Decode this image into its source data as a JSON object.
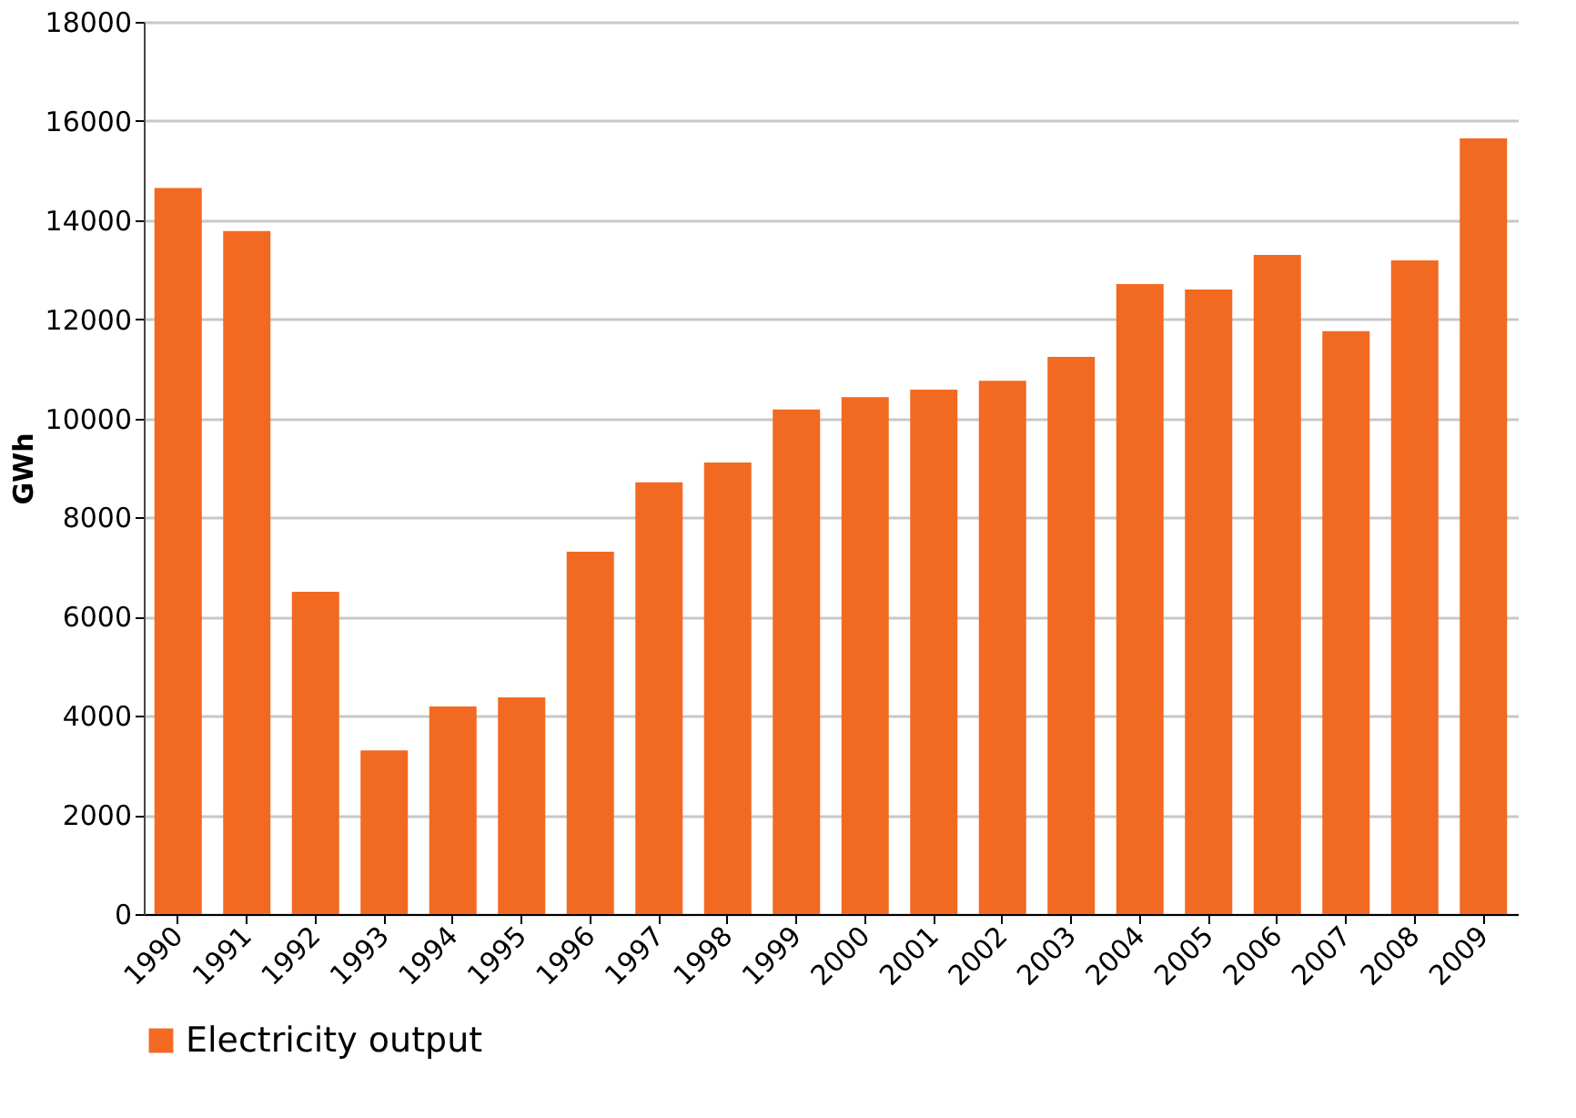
{
  "chart_data": {
    "type": "bar",
    "ylabel": "GWh",
    "categories": [
      "1990",
      "1991",
      "1992",
      "1993",
      "1994",
      "1995",
      "1996",
      "1997",
      "1998",
      "1999",
      "2000",
      "2001",
      "2002",
      "2003",
      "2004",
      "2005",
      "2006",
      "2007",
      "2008",
      "2009"
    ],
    "series": [
      {
        "name": "Electricity output",
        "color": "#f26a21",
        "values": [
          14650,
          13780,
          6500,
          3300,
          4190,
          4370,
          7310,
          8710,
          9110,
          10180,
          10430,
          10580,
          10760,
          11240,
          12710,
          12600,
          13300,
          11760,
          13190,
          15650
        ]
      }
    ],
    "ylim": [
      0,
      18000
    ],
    "yticks": [
      0,
      2000,
      4000,
      6000,
      8000,
      10000,
      12000,
      14000,
      16000,
      18000
    ],
    "grid": "y",
    "legend": "bottom"
  }
}
